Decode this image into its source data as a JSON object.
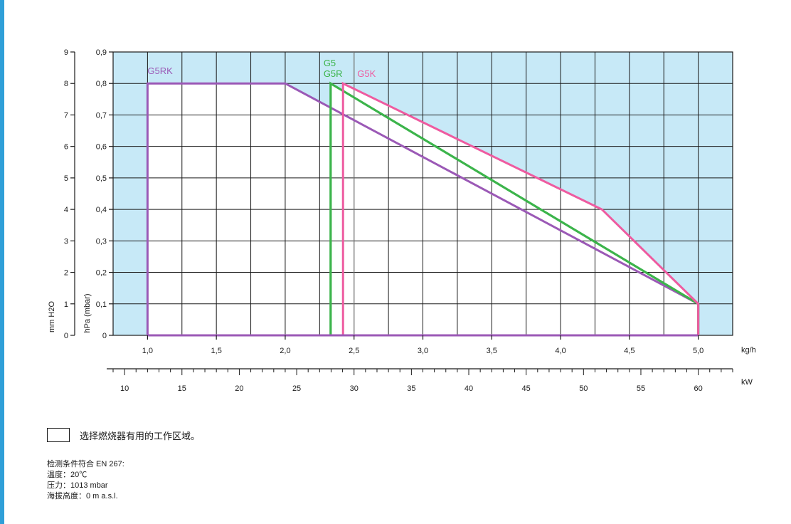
{
  "chart_data": {
    "type": "line",
    "x_primary": {
      "unit": "kg/h",
      "ticks": [
        "1,0",
        "1,5",
        "2,0",
        "2,5",
        "3,0",
        "3,5",
        "4,0",
        "4,5",
        "5,0"
      ],
      "range": [
        0.75,
        5.25
      ]
    },
    "x_secondary": {
      "unit": "kW",
      "ticks": [
        "10",
        "15",
        "20",
        "25",
        "30",
        "35",
        "40",
        "45",
        "50",
        "55",
        "60"
      ],
      "tick_values": [
        10,
        15,
        20,
        25,
        30,
        35,
        40,
        45,
        50,
        55,
        60
      ],
      "range": [
        9,
        63
      ]
    },
    "y_left": {
      "label": "mm H2O",
      "ticks": [
        "0",
        "1",
        "2",
        "3",
        "4",
        "5",
        "6",
        "7",
        "8",
        "9"
      ]
    },
    "y_right": {
      "label": "hPa (mbar)",
      "ticks": [
        "0",
        "0,1",
        "0,2",
        "0,3",
        "0,4",
        "0,5",
        "0,6",
        "0,7",
        "0,8",
        "0,9"
      ],
      "range": [
        0,
        0.9
      ]
    },
    "grid": true,
    "series": [
      {
        "name": "G5RK",
        "color": "#9b59b6",
        "x": [
          1.0,
          1.0,
          2.0,
          5.0,
          5.0
        ],
        "y": [
          0,
          0.8,
          0.8,
          0.1,
          0
        ]
      },
      {
        "name": "G5",
        "color": "#3cb44b",
        "x": [
          2.33,
          2.33,
          5.0,
          5.0
        ],
        "y": [
          0,
          0.8,
          0.1,
          0
        ]
      },
      {
        "name": "G5R",
        "color": "#3cb44b",
        "x": [
          2.33,
          2.33,
          5.0,
          5.0
        ],
        "y": [
          0,
          0.8,
          0.1,
          0
        ]
      },
      {
        "name": "G5K",
        "color": "#ee5ba0",
        "x": [
          2.42,
          2.42,
          4.3,
          5.0,
          5.0
        ],
        "y": [
          0,
          0.8,
          0.4,
          0.1,
          0
        ]
      }
    ],
    "colors": {
      "fill_outside": "#c7e9f7",
      "fill_inside": "#ffffff",
      "grid": "#1a1a1a",
      "marker_line": "#888888"
    }
  },
  "legend": {
    "text": "选择燃烧器有用的工作区域。"
  },
  "notes": [
    "检测条件符合 EN 267:",
    "温度：20℃",
    "压力：1013 mbar",
    "海拔高度：0 m a.s.l."
  ]
}
